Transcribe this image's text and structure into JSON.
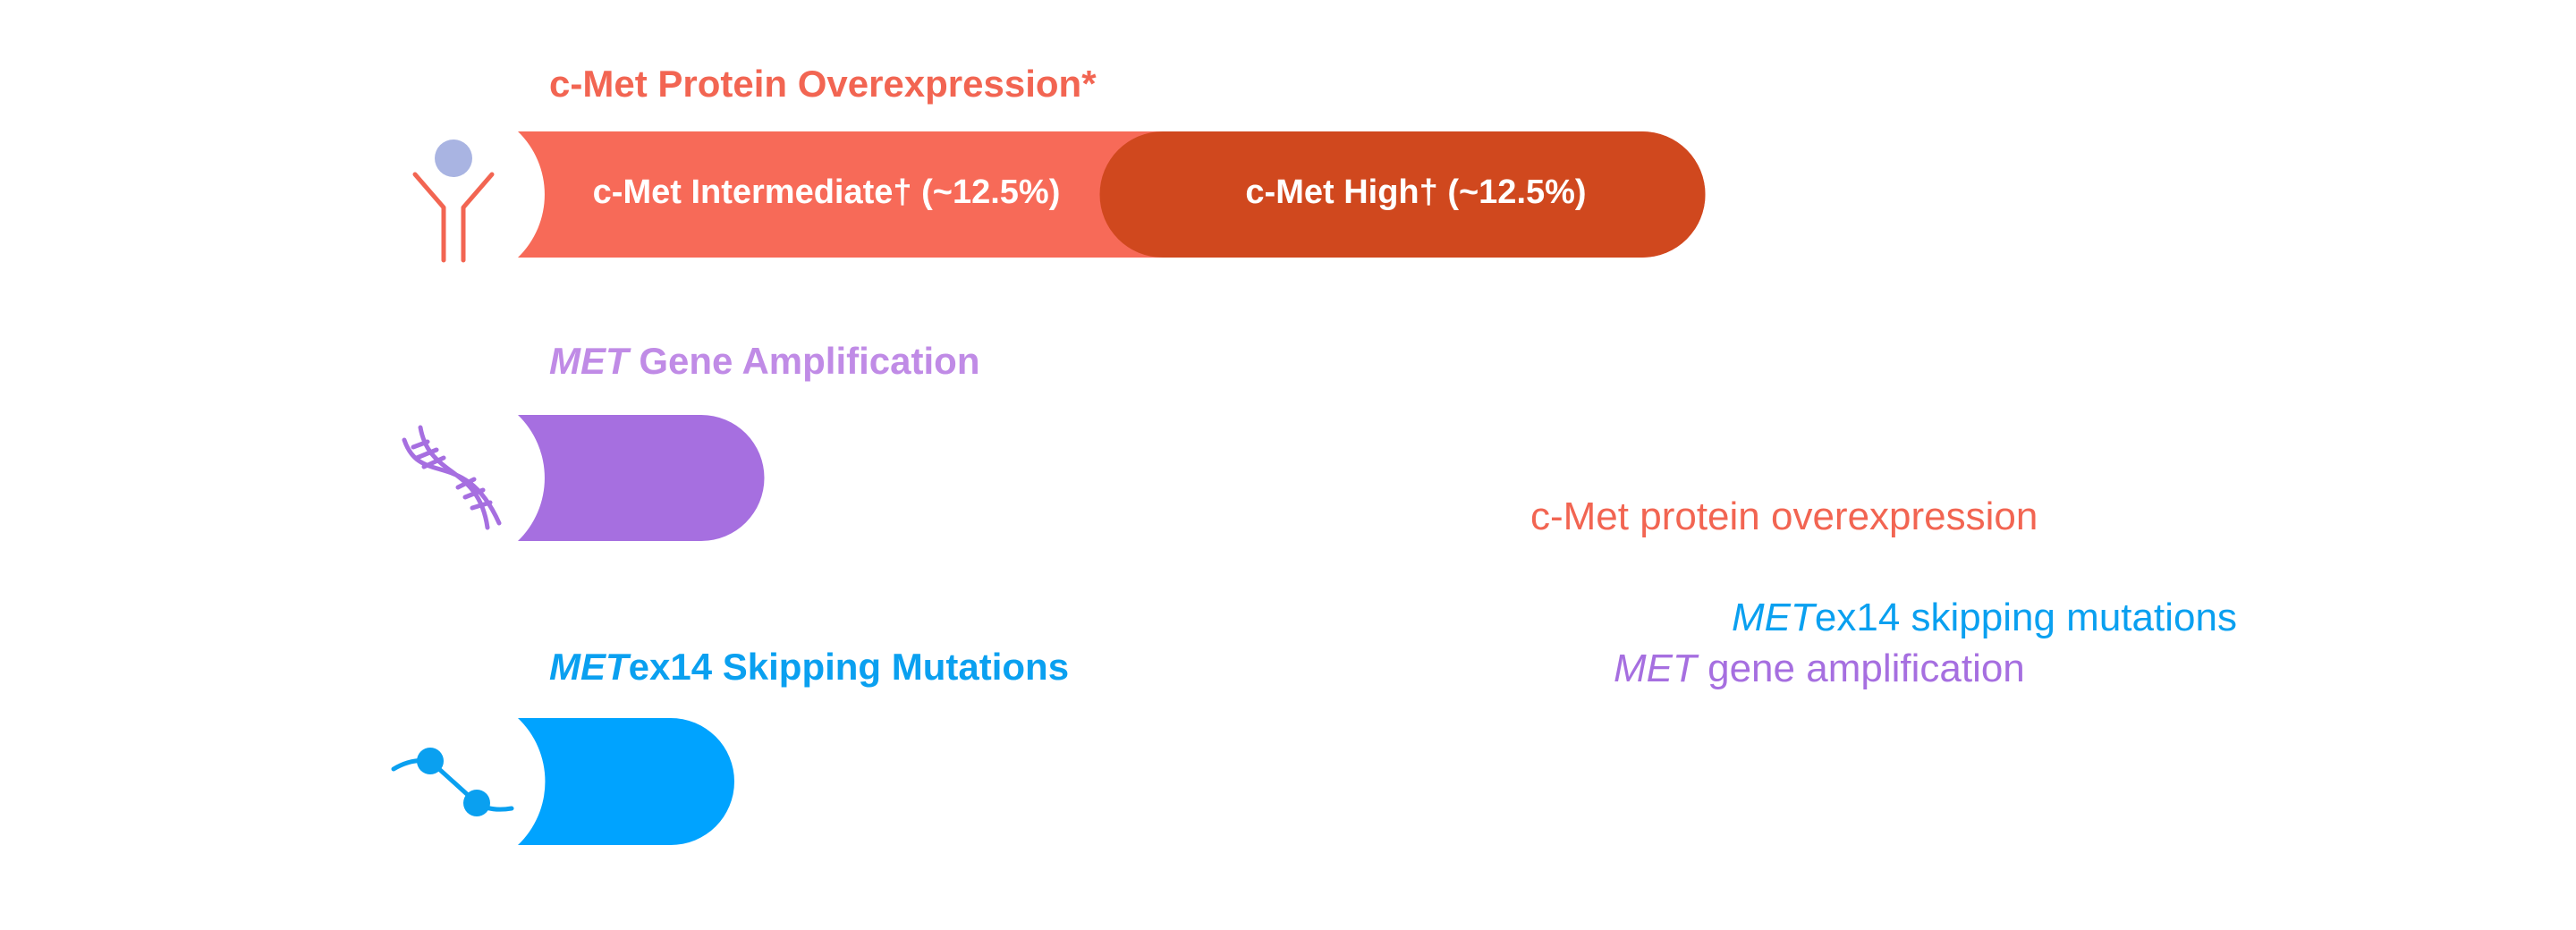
{
  "sections": [
    {
      "title": "c-Met Protein Overexpression*",
      "segments": [
        "c-Met Intermediate† (~12.5%)",
        "c-Met High† (~12.5%)"
      ]
    },
    {
      "title_italic": "MET",
      "title_rest": " Gene Amplification"
    },
    {
      "title_italic": "MET",
      "title_rest": "ex14 Skipping Mutations"
    }
  ],
  "labels": [
    {
      "text": "c-Met protein overexpression"
    },
    {
      "italic": "MET",
      "rest": "ex14 skipping mutations"
    },
    {
      "italic": "MET",
      "rest": " gene amplification"
    }
  ]
}
